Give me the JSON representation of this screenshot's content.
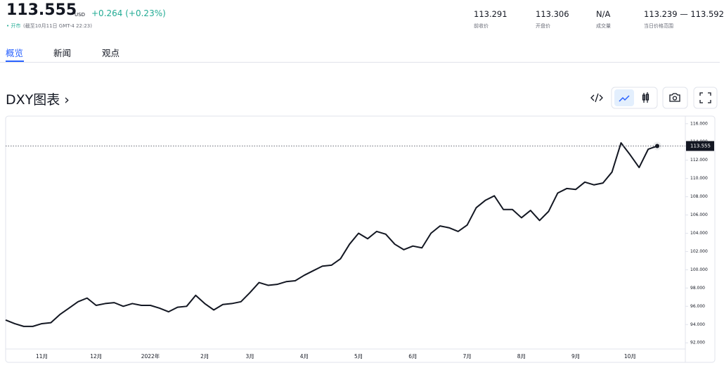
{
  "quote": {
    "price": "113.555",
    "currency": "USD",
    "change": "+0.264",
    "change_percent": "(+0.23%)",
    "status": "• 开市",
    "timestamp": "(截至10月11日 GMT-4 22:23)"
  },
  "stats": [
    {
      "value": "113.291",
      "label": "前收价"
    },
    {
      "value": "113.306",
      "label": "开盘价"
    },
    {
      "value": "N/A",
      "label": "成交量"
    },
    {
      "value": "113.239 — 113.592",
      "label": "当日价格范围"
    }
  ],
  "tabs": [
    "概览",
    "新闻",
    "观点"
  ],
  "chart_heading": "DXY图表 ›",
  "chart_data": {
    "type": "line",
    "categories": [
      null,
      null,
      null,
      null,
      "11月",
      null,
      null,
      null,
      null,
      null,
      "12月",
      null,
      null,
      null,
      null,
      null,
      "2022年",
      null,
      null,
      null,
      null,
      null,
      "2月",
      null,
      null,
      null,
      null,
      "3月",
      null,
      null,
      null,
      null,
      null,
      "4月",
      null,
      null,
      null,
      null,
      null,
      "5月",
      null,
      null,
      null,
      null,
      null,
      "6月",
      null,
      null,
      null,
      null,
      null,
      "7月",
      null,
      null,
      null,
      null,
      null,
      "8月",
      null,
      null,
      null,
      null,
      null,
      "9月",
      null,
      null,
      null,
      null,
      null,
      "10月",
      null,
      null,
      null
    ],
    "series": [
      {
        "name": "DXY",
        "color": "#131722",
        "values": [
          94.5,
          94.1,
          93.8,
          93.8,
          94.1,
          94.2,
          95.1,
          95.8,
          96.5,
          96.9,
          96.1,
          96.3,
          96.4,
          96.0,
          96.3,
          96.1,
          96.1,
          95.8,
          95.4,
          95.9,
          96.0,
          97.2,
          96.3,
          95.6,
          96.2,
          96.3,
          96.5,
          97.5,
          98.6,
          98.3,
          98.4,
          98.7,
          98.8,
          99.4,
          99.9,
          100.4,
          100.5,
          101.2,
          102.8,
          104.0,
          103.4,
          104.2,
          103.9,
          102.8,
          102.2,
          102.6,
          102.4,
          104.0,
          104.8,
          104.6,
          104.2,
          104.9,
          106.8,
          107.6,
          108.1,
          106.6,
          106.6,
          105.7,
          106.5,
          105.4,
          106.4,
          108.4,
          108.9,
          108.8,
          109.6,
          109.3,
          109.5,
          110.7,
          113.9,
          112.6,
          111.2,
          113.2,
          113.555
        ]
      }
    ],
    "ylim": [
      91.4,
      116.6
    ],
    "yticks": [
      {
        "value": 92,
        "label": "92.000"
      },
      {
        "value": 94,
        "label": "94.000"
      },
      {
        "value": 96,
        "label": "96.000"
      },
      {
        "value": 98,
        "label": "98.000"
      },
      {
        "value": 100,
        "label": "100.000"
      },
      {
        "value": 102,
        "label": "102.000"
      },
      {
        "value": 104,
        "label": "104.000"
      },
      {
        "value": 106,
        "label": "106.000"
      },
      {
        "value": 108,
        "label": "108.000"
      },
      {
        "value": 110,
        "label": "110.000"
      },
      {
        "value": 112,
        "label": "112.000"
      },
      {
        "value": 114,
        "label": "114.000"
      },
      {
        "value": 116,
        "label": "116.000"
      }
    ],
    "grid": false
  }
}
